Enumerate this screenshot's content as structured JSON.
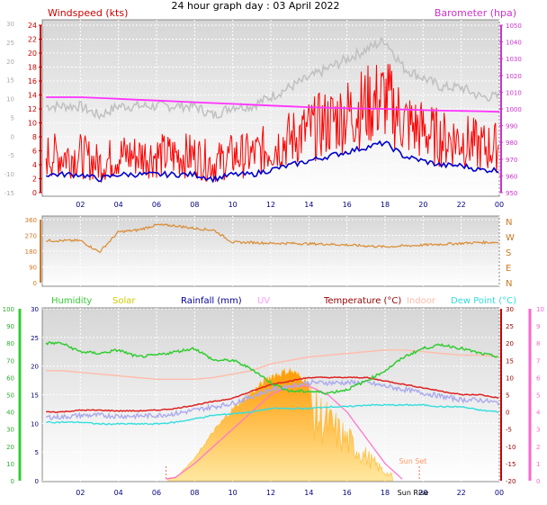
{
  "header": {
    "title": "24 hour graph day : 03 April 2022"
  },
  "panel1": {
    "left_label": "Windspeed (kts)",
    "right_label": "Barometer (hpa)",
    "inner_left_ticks": [
      "24",
      "22",
      "20",
      "18",
      "16",
      "14",
      "12",
      "10",
      "8",
      "6",
      "4",
      "2",
      "0"
    ],
    "outer_left_ticks": [
      "30",
      "25",
      "20",
      "15",
      "10",
      "5",
      "0",
      "-5",
      "-10",
      "-15"
    ],
    "right_ticks": [
      "1050",
      "1040",
      "1030",
      "1020",
      "1010",
      "1000",
      "990",
      "980",
      "970",
      "960",
      "950"
    ]
  },
  "panel2": {
    "left_ticks": [
      "360",
      "270",
      "180",
      "90",
      "0"
    ],
    "right_letters": [
      "N",
      "W",
      "S",
      "E",
      "N"
    ]
  },
  "panel3": {
    "legend": [
      "Humidity",
      "Solar",
      "Rainfall (mm)",
      "UV",
      "Temperature (°C)",
      "Indoor",
      "Dew Point (°C)"
    ],
    "outer_left_ticks": [
      "100",
      "90",
      "80",
      "70",
      "60",
      "50",
      "40",
      "30",
      "20",
      "10",
      "0"
    ],
    "inner_left_ticks": [
      "30",
      "25",
      "20",
      "15",
      "10",
      "5",
      "0"
    ],
    "right_inner_ticks": [
      "30",
      "25",
      "20",
      "15",
      "10",
      "5",
      "0",
      "-5",
      "-10",
      "-15",
      "-20"
    ],
    "right_outer_ticks": [
      "10",
      "9",
      "8",
      "7",
      "6",
      "5",
      "4",
      "3",
      "2",
      "1",
      "0"
    ],
    "sun_rise_label": "Sun Rise",
    "sun_set_label": "Sun Set"
  },
  "x_ticks": [
    "02",
    "04",
    "06",
    "08",
    "10",
    "12",
    "14",
    "16",
    "18",
    "20",
    "22",
    "00"
  ],
  "colors": {
    "wind_title": "#cc0000",
    "baro_title": "#cc33cc",
    "humidity": "#33cc33",
    "solar": "#cccc00",
    "rainfall": "#000099",
    "uv": "#ff99ff",
    "temperature": "#990000",
    "indoor": "#ffbbaa",
    "dewpoint": "#33dddd",
    "wind_line": "#ff0000",
    "avg_line": "#0000cc",
    "gust_line": "#c0c0c0",
    "baro_line": "#ff33ff",
    "dir_line": "#d98c33"
  },
  "chart_data": [
    {
      "type": "line",
      "panel": "wind-barometer",
      "x": [
        "01",
        "02",
        "03",
        "04",
        "05",
        "06",
        "07",
        "08",
        "09",
        "10",
        "11",
        "12",
        "13",
        "14",
        "15",
        "16",
        "17",
        "18",
        "19",
        "20",
        "21",
        "22",
        "23",
        "00"
      ],
      "series": [
        {
          "name": "Windspeed (kts)",
          "axis": "left",
          "values": [
            4,
            4,
            3,
            4,
            4,
            4,
            4,
            4,
            3,
            4,
            4,
            5,
            6,
            7,
            8,
            9,
            10,
            11,
            8,
            7,
            6,
            6,
            5,
            5
          ]
        },
        {
          "name": "Barometer (hpa)",
          "axis": "right",
          "values": [
            1007,
            1007,
            1006.5,
            1006,
            1005.5,
            1005,
            1004.5,
            1004,
            1003.5,
            1003,
            1002.5,
            1002,
            1001.5,
            1001,
            1000.7,
            1000.4,
            1000.2,
            1000,
            999.6,
            999.3,
            999,
            998.8,
            998.6,
            998.3
          ]
        }
      ],
      "xlim": [
        "00",
        "00"
      ],
      "ylim_left": [
        0,
        24
      ],
      "ylim_right": [
        950,
        1050
      ]
    },
    {
      "type": "line",
      "panel": "wind-direction",
      "x": [
        "01",
        "02",
        "03",
        "04",
        "05",
        "06",
        "07",
        "08",
        "09",
        "10",
        "11",
        "12",
        "13",
        "14",
        "15",
        "16",
        "17",
        "18",
        "19",
        "20",
        "21",
        "22",
        "23",
        "00"
      ],
      "series": [
        {
          "name": "Wind direction",
          "values": [
            240,
            240,
            175,
            290,
            300,
            330,
            325,
            310,
            300,
            230,
            230,
            225,
            225,
            222,
            220,
            215,
            210,
            205,
            210,
            215,
            220,
            225,
            230,
            230
          ]
        }
      ],
      "ylim": [
        0,
        360
      ]
    },
    {
      "type": "line",
      "panel": "temperature-humidity",
      "x": [
        "01",
        "02",
        "03",
        "04",
        "05",
        "06",
        "07",
        "08",
        "09",
        "10",
        "11",
        "12",
        "13",
        "14",
        "15",
        "16",
        "17",
        "18",
        "19",
        "20",
        "21",
        "22",
        "23",
        "00"
      ],
      "series": [
        {
          "name": "Humidity",
          "axis": "outer-left",
          "values": [
            80,
            75,
            74,
            76,
            72,
            73,
            75,
            77,
            70,
            70,
            65,
            57,
            52,
            52,
            51,
            53,
            58,
            64,
            72,
            77,
            79,
            77,
            74,
            72
          ]
        },
        {
          "name": "Temperature (°C)",
          "axis": "right",
          "values": [
            0,
            0.5,
            0.5,
            0.3,
            0.3,
            0.5,
            1,
            2,
            3,
            4,
            6,
            8,
            9,
            10,
            10,
            10,
            10,
            9,
            8,
            7,
            6,
            5,
            5,
            4
          ]
        },
        {
          "name": "Dew Point (°C)",
          "axis": "right",
          "values": [
            -3,
            -3,
            -3.5,
            -3.5,
            -3.5,
            -3.5,
            -3,
            -2,
            -1,
            -0.5,
            0,
            1,
            1,
            1,
            1.5,
            1.5,
            2,
            2,
            2,
            2,
            1.5,
            1.5,
            0.5,
            0
          ]
        },
        {
          "name": "Indoor",
          "axis": "right",
          "values": [
            12,
            11.5,
            11,
            10.5,
            10,
            9.5,
            9.5,
            9.5,
            10,
            11,
            12,
            14,
            15,
            16,
            16.5,
            17,
            17.5,
            18,
            18,
            17.5,
            17,
            16.5,
            16.5,
            16
          ]
        },
        {
          "name": "UV",
          "axis": "right-outer",
          "values": [
            0,
            0,
            0,
            0,
            0,
            0,
            0.2,
            1,
            2,
            3,
            4,
            5,
            5.5,
            5.5,
            5,
            4,
            2.5,
            1,
            0,
            0,
            0,
            0,
            0,
            0
          ]
        },
        {
          "name": "Solar",
          "axis": "inner-left",
          "values": [
            0,
            0,
            0,
            0,
            0,
            0,
            0.5,
            4,
            9,
            13,
            16,
            19,
            20,
            18,
            14,
            10,
            6,
            2,
            0,
            0,
            0,
            0,
            0,
            0
          ]
        },
        {
          "name": "Rainfall (mm)",
          "axis": "inner-left",
          "values": [
            0,
            0,
            0,
            0,
            0,
            0,
            0,
            0,
            0,
            0,
            0,
            0,
            0,
            0,
            0,
            0,
            0,
            0,
            0,
            0,
            0,
            0,
            0,
            0
          ]
        }
      ],
      "ylim_outer_left": [
        0,
        100
      ],
      "ylim_inner_left": [
        0,
        30
      ],
      "ylim_right": [
        -20,
        30
      ],
      "ylim_right_outer": [
        0,
        10
      ]
    }
  ]
}
